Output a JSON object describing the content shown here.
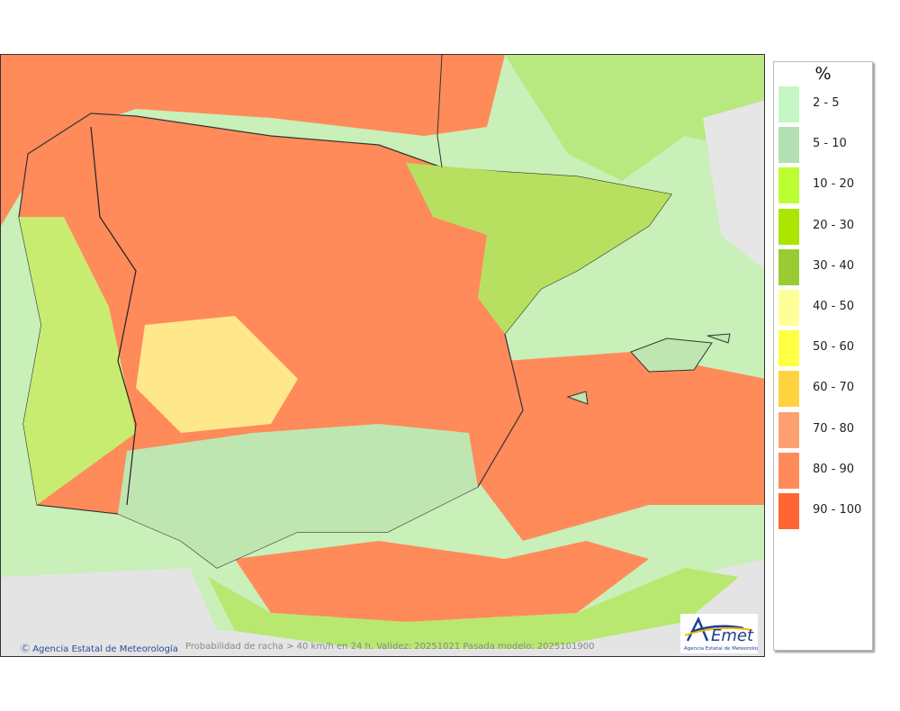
{
  "legend": {
    "title": "%",
    "items": [
      {
        "label": "2 - 5",
        "color": "#c4f7c4"
      },
      {
        "label": "5 - 10",
        "color": "#b2e0b2"
      },
      {
        "label": "10 - 20",
        "color": "#bbff33"
      },
      {
        "label": "20 - 30",
        "color": "#aae600"
      },
      {
        "label": "30 - 40",
        "color": "#99cc33"
      },
      {
        "label": "40 - 50",
        "color": "#ffff99"
      },
      {
        "label": "50 - 60",
        "color": "#ffff44"
      },
      {
        "label": "60 - 70",
        "color": "#ffd33f"
      },
      {
        "label": "70 - 80",
        "color": "#ffa070"
      },
      {
        "label": "80 - 90",
        "color": "#ff8a5a"
      },
      {
        "label": "90 - 100",
        "color": "#ff6633"
      }
    ]
  },
  "footer": {
    "copyright": "Agencia Estatal de Meteorología",
    "caption": "Probabilidad de racha > 40 km/h en 24 h. Validez: 20251021 Pasada modelo: 2025101900"
  },
  "logo": {
    "text": "AEmet",
    "subtitle": "Agencia Estatal de Meteorología"
  }
}
